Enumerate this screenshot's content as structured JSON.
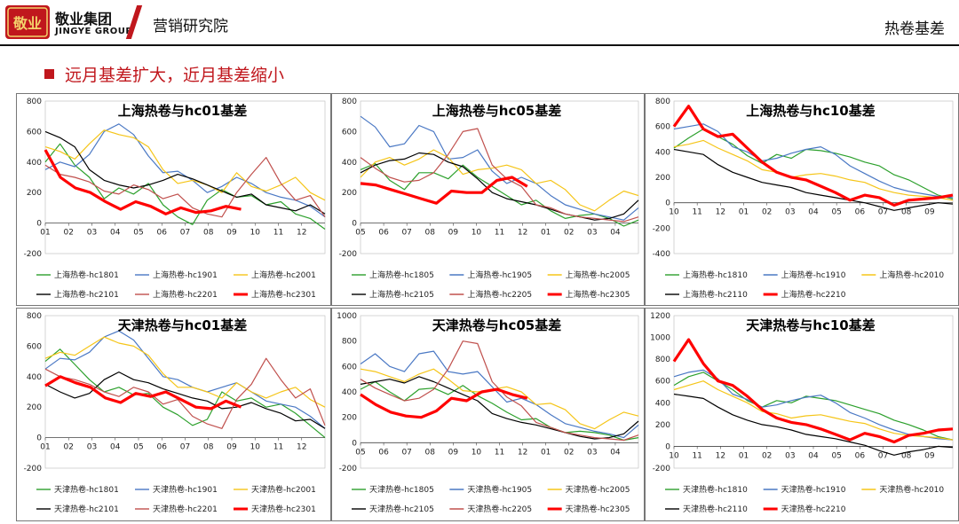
{
  "header": {
    "brand_cn": "敬业集团",
    "brand_en": "JINGYE GROUP",
    "logo_text": "敬业",
    "department": "营销研究院",
    "topic": "热卷基差"
  },
  "headline": "远月基差扩大，近月基差缩小",
  "colors": {
    "brand_red": "#c0171d",
    "green": "#2ca02c",
    "blue": "#4a78c4",
    "yellow": "#f5c518",
    "black": "#000000",
    "pink": "#c0504d",
    "red": "#ff0000"
  },
  "chart_data": [
    {
      "type": "line",
      "title": "上海热卷与hc01基差",
      "x_ticks": [
        "01",
        "02",
        "03",
        "04",
        "05",
        "06",
        "07",
        "08",
        "09",
        "10",
        "11",
        "12"
      ],
      "ylim": [
        -200,
        800
      ],
      "y_ticks": [
        -200,
        0,
        200,
        400,
        600,
        800
      ],
      "series": [
        {
          "name": "上海热卷-hc1801",
          "color": "green",
          "values": [
            400,
            520,
            380,
            300,
            160,
            230,
            190,
            260,
            120,
            40,
            -10,
            150,
            220,
            170,
            180,
            120,
            140,
            60,
            30,
            -40
          ]
        },
        {
          "name": "上海热卷-hc1901",
          "color": "blue",
          "values": [
            350,
            400,
            370,
            450,
            600,
            650,
            580,
            440,
            330,
            340,
            280,
            200,
            240,
            300,
            260,
            200,
            170,
            150,
            110,
            40
          ]
        },
        {
          "name": "上海热卷-hc2001",
          "color": "yellow",
          "values": [
            500,
            470,
            420,
            520,
            610,
            580,
            560,
            500,
            350,
            260,
            280,
            250,
            200,
            330,
            240,
            210,
            250,
            300,
            200,
            150
          ]
        },
        {
          "name": "上海热卷-hc2101",
          "color": "black",
          "values": [
            600,
            560,
            500,
            350,
            280,
            250,
            230,
            250,
            280,
            320,
            290,
            250,
            210,
            170,
            190,
            120,
            100,
            80,
            120,
            60
          ]
        },
        {
          "name": "上海热卷-hc2201",
          "color": "pink",
          "values": [
            380,
            320,
            300,
            270,
            210,
            190,
            250,
            220,
            160,
            190,
            100,
            60,
            40,
            200,
            320,
            430,
            260,
            150,
            180,
            40
          ]
        },
        {
          "name": "上海热卷-hc2301",
          "color": "red",
          "values": [
            480,
            300,
            230,
            200,
            140,
            90,
            140,
            110,
            60,
            100,
            70,
            80,
            110,
            90
          ]
        }
      ]
    },
    {
      "type": "line",
      "title": "上海热卷与hc05基差",
      "x_ticks": [
        "05",
        "06",
        "07",
        "08",
        "09",
        "10",
        "11",
        "12",
        "01",
        "02",
        "03",
        "04"
      ],
      "ylim": [
        -200,
        800
      ],
      "y_ticks": [
        -200,
        0,
        200,
        400,
        600,
        800
      ],
      "series": [
        {
          "name": "上海热卷-hc1805",
          "color": "green",
          "values": [
            350,
            390,
            280,
            220,
            330,
            330,
            290,
            380,
            300,
            240,
            180,
            120,
            150,
            80,
            30,
            50,
            60,
            30,
            -20,
            20
          ]
        },
        {
          "name": "上海热卷-hc1905",
          "color": "blue",
          "values": [
            700,
            630,
            500,
            520,
            640,
            600,
            420,
            430,
            480,
            340,
            260,
            300,
            260,
            180,
            120,
            90,
            60,
            40,
            20,
            100
          ]
        },
        {
          "name": "上海热卷-hc2005",
          "color": "yellow",
          "values": [
            300,
            400,
            430,
            380,
            420,
            480,
            430,
            320,
            350,
            360,
            380,
            350,
            260,
            280,
            220,
            120,
            80,
            150,
            210,
            180
          ]
        },
        {
          "name": "上海热卷-hc2105",
          "color": "black",
          "values": [
            330,
            380,
            410,
            420,
            460,
            450,
            400,
            370,
            290,
            200,
            160,
            140,
            120,
            90,
            60,
            40,
            20,
            30,
            60,
            150
          ]
        },
        {
          "name": "上海热卷-hc2205",
          "color": "pink",
          "values": [
            430,
            360,
            300,
            270,
            280,
            330,
            450,
            600,
            620,
            380,
            290,
            240,
            120,
            100,
            60,
            40,
            30,
            20,
            10,
            40
          ]
        },
        {
          "name": "上海热卷-hc2305",
          "color": "red",
          "values": [
            260,
            250,
            220,
            190,
            160,
            130,
            210,
            200,
            200,
            280,
            300,
            240
          ]
        }
      ]
    },
    {
      "type": "line",
      "title": "上海热卷与hc10基差",
      "x_ticks": [
        "10",
        "11",
        "12",
        "01",
        "02",
        "03",
        "04",
        "05",
        "06",
        "07",
        "08",
        "09"
      ],
      "ylim": [
        -400,
        800
      ],
      "y_ticks": [
        -400,
        -200,
        0,
        200,
        400,
        600,
        800
      ],
      "series": [
        {
          "name": "上海热卷-hc1810",
          "color": "green",
          "values": [
            430,
            510,
            580,
            520,
            460,
            370,
            310,
            380,
            350,
            420,
            410,
            390,
            360,
            320,
            290,
            220,
            180,
            120,
            60,
            30
          ]
        },
        {
          "name": "上海热卷-hc1910",
          "color": "blue",
          "values": [
            580,
            600,
            620,
            560,
            440,
            400,
            330,
            350,
            390,
            420,
            440,
            380,
            290,
            230,
            170,
            120,
            90,
            70,
            50,
            40
          ]
        },
        {
          "name": "上海热卷-hc2010",
          "color": "yellow",
          "values": [
            440,
            460,
            490,
            430,
            380,
            330,
            260,
            240,
            200,
            220,
            230,
            210,
            180,
            160,
            110,
            80,
            60,
            50,
            40,
            20
          ]
        },
        {
          "name": "上海热卷-hc2110",
          "color": "black",
          "values": [
            420,
            400,
            380,
            300,
            240,
            200,
            160,
            140,
            120,
            80,
            60,
            40,
            20,
            0,
            -30,
            -60,
            -40,
            -20,
            0,
            -10
          ]
        },
        {
          "name": "上海热卷-hc2210",
          "color": "red",
          "values": [
            600,
            760,
            580,
            520,
            540,
            430,
            320,
            240,
            200,
            180,
            130,
            80,
            20,
            60,
            40,
            -20,
            20,
            30,
            40,
            60
          ]
        }
      ]
    },
    {
      "type": "line",
      "title": "天津热卷与hc01基差",
      "x_ticks": [
        "01",
        "02",
        "03",
        "04",
        "05",
        "06",
        "07",
        "08",
        "09",
        "10",
        "11",
        "12"
      ],
      "ylim": [
        -200,
        800
      ],
      "y_ticks": [
        -200,
        0,
        200,
        400,
        600,
        800
      ],
      "series": [
        {
          "name": "天津热卷-hc1801",
          "color": "green",
          "values": [
            500,
            580,
            480,
            380,
            300,
            330,
            280,
            290,
            200,
            150,
            80,
            120,
            300,
            240,
            260,
            200,
            220,
            160,
            80,
            0
          ]
        },
        {
          "name": "天津热卷-hc1901",
          "color": "blue",
          "values": [
            450,
            520,
            510,
            560,
            660,
            700,
            640,
            520,
            400,
            380,
            330,
            300,
            330,
            360,
            300,
            240,
            220,
            200,
            140,
            60
          ]
        },
        {
          "name": "天津热卷-hc2001",
          "color": "yellow",
          "values": [
            520,
            560,
            540,
            600,
            660,
            620,
            600,
            540,
            420,
            330,
            330,
            300,
            260,
            360,
            300,
            260,
            300,
            330,
            250,
            200
          ]
        },
        {
          "name": "天津热卷-hc2101",
          "color": "black",
          "values": [
            350,
            300,
            260,
            290,
            380,
            430,
            380,
            360,
            320,
            290,
            260,
            240,
            190,
            200,
            230,
            190,
            160,
            110,
            120,
            60
          ]
        },
        {
          "name": "天津热卷-hc2201",
          "color": "pink",
          "values": [
            450,
            400,
            380,
            350,
            300,
            270,
            330,
            300,
            220,
            250,
            140,
            90,
            60,
            250,
            350,
            520,
            380,
            260,
            320,
            80
          ]
        },
        {
          "name": "天津热卷-hc2301",
          "color": "red",
          "values": [
            340,
            400,
            360,
            330,
            260,
            230,
            290,
            270,
            300,
            250,
            200,
            190,
            240,
            200
          ]
        }
      ]
    },
    {
      "type": "line",
      "title": "天津热卷与hc05基差",
      "x_ticks": [
        "05",
        "06",
        "07",
        "08",
        "09",
        "10",
        "11",
        "12",
        "01",
        "02",
        "03",
        "04"
      ],
      "ylim": [
        -200,
        1000
      ],
      "y_ticks": [
        -200,
        0,
        200,
        400,
        600,
        800,
        1000
      ],
      "series": [
        {
          "name": "天津热卷-hc1805",
          "color": "green",
          "values": [
            420,
            480,
            400,
            330,
            420,
            430,
            380,
            450,
            370,
            310,
            240,
            180,
            190,
            120,
            80,
            90,
            80,
            60,
            20,
            40
          ]
        },
        {
          "name": "天津热卷-hc1905",
          "color": "blue",
          "values": [
            620,
            700,
            600,
            560,
            700,
            720,
            560,
            540,
            560,
            440,
            320,
            350,
            300,
            220,
            150,
            120,
            90,
            70,
            40,
            140
          ]
        },
        {
          "name": "天津热卷-hc2005",
          "color": "yellow",
          "values": [
            580,
            560,
            520,
            480,
            540,
            580,
            500,
            410,
            400,
            420,
            440,
            400,
            300,
            310,
            260,
            150,
            110,
            180,
            240,
            210
          ]
        },
        {
          "name": "天津热卷-hc2105",
          "color": "black",
          "values": [
            460,
            480,
            500,
            470,
            520,
            480,
            430,
            380,
            330,
            230,
            190,
            160,
            140,
            110,
            80,
            50,
            30,
            40,
            70,
            170
          ]
        },
        {
          "name": "天津热卷-hc2205",
          "color": "pink",
          "values": [
            500,
            430,
            380,
            330,
            350,
            420,
            580,
            800,
            780,
            480,
            360,
            290,
            160,
            120,
            80,
            60,
            40,
            30,
            20,
            60
          ]
        },
        {
          "name": "天津热卷-hc2305",
          "color": "red",
          "values": [
            380,
            300,
            240,
            210,
            200,
            250,
            350,
            330,
            400,
            420,
            380,
            350
          ]
        }
      ]
    },
    {
      "type": "line",
      "title": "天津热卷与hc10基差",
      "x_ticks": [
        "10",
        "11",
        "12",
        "01",
        "02",
        "03",
        "04",
        "05",
        "06",
        "07",
        "08",
        "09"
      ],
      "ylim": [
        -200,
        1200
      ],
      "y_ticks": [
        -200,
        0,
        200,
        400,
        600,
        800,
        1000,
        1200
      ],
      "series": [
        {
          "name": "天津热卷-hc1810",
          "color": "green",
          "values": [
            560,
            640,
            680,
            600,
            520,
            420,
            360,
            420,
            400,
            460,
            440,
            420,
            380,
            340,
            300,
            240,
            200,
            150,
            90,
            60
          ]
        },
        {
          "name": "天津热卷-hc1910",
          "color": "blue",
          "values": [
            640,
            680,
            700,
            620,
            480,
            430,
            360,
            380,
            420,
            450,
            470,
            400,
            310,
            260,
            200,
            150,
            110,
            90,
            70,
            60
          ]
        },
        {
          "name": "天津热卷-hc2010",
          "color": "yellow",
          "values": [
            520,
            560,
            600,
            520,
            460,
            400,
            320,
            300,
            260,
            280,
            290,
            260,
            230,
            210,
            160,
            120,
            100,
            90,
            80,
            60
          ]
        },
        {
          "name": "天津热卷-hc2110",
          "color": "black",
          "values": [
            480,
            460,
            440,
            360,
            290,
            240,
            200,
            180,
            150,
            110,
            90,
            70,
            40,
            10,
            -40,
            -80,
            -50,
            -30,
            0,
            -10
          ]
        },
        {
          "name": "天津热卷-hc2210",
          "color": "red",
          "values": [
            780,
            980,
            760,
            600,
            560,
            460,
            340,
            260,
            220,
            200,
            160,
            110,
            60,
            120,
            90,
            40,
            100,
            120,
            150,
            160
          ]
        }
      ]
    }
  ]
}
